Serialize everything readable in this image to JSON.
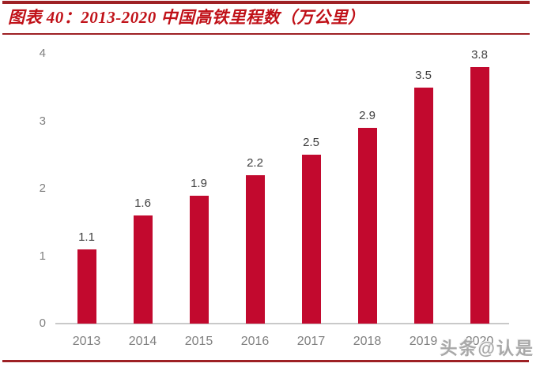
{
  "figure": {
    "title": "图表 40：2013-2020 中国高铁里程数（万公里）"
  },
  "watermark": {
    "text": "头条@认是"
  },
  "chart_data": {
    "type": "bar",
    "title": "2013-2020 中国高铁里程数（万公里）",
    "categories": [
      "2013",
      "2014",
      "2015",
      "2016",
      "2017",
      "2018",
      "2019",
      "2020"
    ],
    "values": [
      1.1,
      1.6,
      1.9,
      2.2,
      2.5,
      2.9,
      3.5,
      3.8
    ],
    "value_labels": [
      "1.1",
      "1.6",
      "1.9",
      "2.2",
      "2.5",
      "2.9",
      "3.5",
      "3.8"
    ],
    "xlabel": "",
    "ylabel": "",
    "ylim": [
      0,
      4
    ],
    "yticks": [
      0,
      1,
      2,
      3,
      4
    ],
    "grid": false,
    "legend": "none",
    "bar_color": "#C2092E"
  },
  "colors": {
    "bar": "#C2092E",
    "title": "#C01118",
    "rule": "#9E2125",
    "axis_line": "#C9C9C9",
    "tick_label": "#7F7F7F",
    "value_label": "#404040",
    "watermark": "#A8A8A8"
  }
}
